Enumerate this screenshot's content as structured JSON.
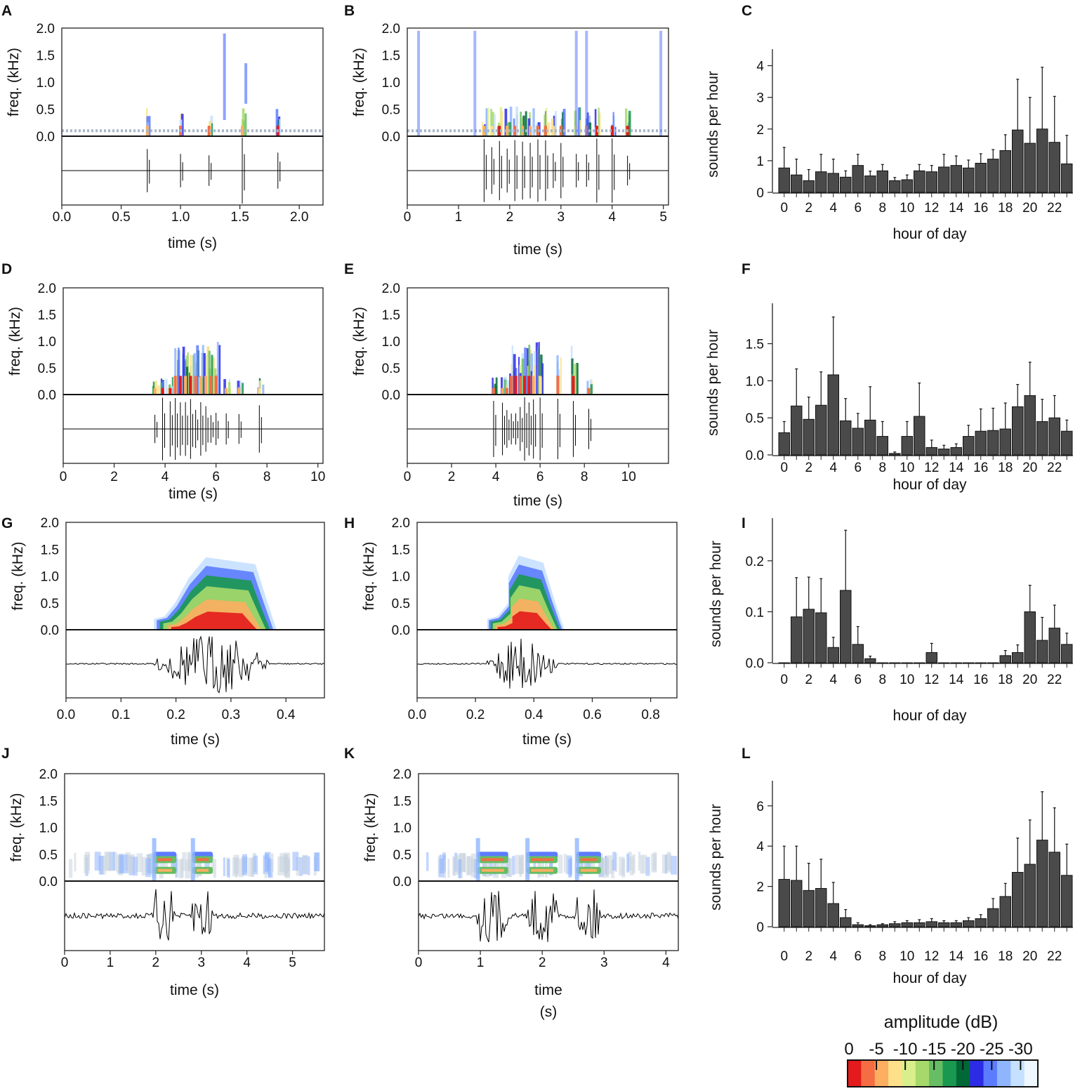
{
  "colors": {
    "bar": "#4a4a4a",
    "spectrogram_scale": [
      "#e41a1c",
      "#f46d43",
      "#fdae61",
      "#fee08b",
      "#d9ef8b",
      "#a6d96a",
      "#66bd63",
      "#1a9850",
      "#006837",
      "#2c2ce6",
      "#5c7cff",
      "#8fb5ff",
      "#c6e0ff",
      "#eef6ff"
    ]
  },
  "legend": {
    "title": "amplitude (dB)",
    "ticks": [
      "0",
      "-5",
      "-10",
      "-15",
      "-20",
      "-25",
      "-30"
    ]
  },
  "chart_data": [
    {
      "panel": "A",
      "type": "spectrogram",
      "ylabel": "freq. (kHz)",
      "xlabel": "time (s)",
      "yticks": [
        "0.0",
        "0.5",
        "1.0",
        "1.5",
        "2.0"
      ],
      "xticks": [
        "0.0",
        "0.5",
        "1.0",
        "1.5",
        "2.0"
      ],
      "xlim": [
        0,
        2.2
      ],
      "events": [
        0.72,
        1.0,
        1.24,
        1.52,
        1.82
      ]
    },
    {
      "panel": "B",
      "type": "spectrogram",
      "ylabel": "freq. (kHz)",
      "xlabel": "time (s)",
      "yticks": [
        "0.0",
        "0.5",
        "1.0",
        "1.5",
        "2.0"
      ],
      "xticks": [
        "0",
        "1",
        "2",
        "3",
        "4",
        "5"
      ],
      "xlim": [
        0,
        5.1
      ],
      "events": [
        1.5,
        1.65,
        1.8,
        1.95,
        2.1,
        2.25,
        2.4,
        2.55,
        2.7,
        2.85,
        3.0,
        3.3,
        3.5,
        3.7,
        4.0,
        4.3
      ]
    },
    {
      "panel": "C",
      "type": "bar",
      "xlabel": "hour of day",
      "ylabel": "sounds per hour",
      "xticks": [
        "0",
        "2",
        "4",
        "6",
        "8",
        "10",
        "12",
        "14",
        "16",
        "18",
        "20",
        "22"
      ],
      "yticks": [
        "0",
        "1",
        "2",
        "3",
        "4"
      ],
      "ylim": [
        0,
        4.3
      ],
      "categories": [
        0,
        1,
        2,
        3,
        4,
        5,
        6,
        7,
        8,
        9,
        10,
        11,
        12,
        13,
        14,
        15,
        16,
        17,
        18,
        19,
        20,
        21,
        22,
        23
      ],
      "values": [
        0.77,
        0.55,
        0.37,
        0.65,
        0.6,
        0.48,
        0.85,
        0.52,
        0.68,
        0.37,
        0.4,
        0.68,
        0.65,
        0.8,
        0.85,
        0.77,
        0.92,
        1.05,
        1.32,
        1.97,
        1.55,
        2.0,
        1.58,
        0.9
      ],
      "errors": [
        0.65,
        0.5,
        0.35,
        0.55,
        0.45,
        0.2,
        0.35,
        0.15,
        0.2,
        0.1,
        0.15,
        0.2,
        0.2,
        0.4,
        0.3,
        0.25,
        0.3,
        0.3,
        0.5,
        1.6,
        1.45,
        1.95,
        1.45,
        0.9
      ]
    },
    {
      "panel": "D",
      "type": "spectrogram",
      "ylabel": "freq. (kHz)",
      "xlabel": "time (s)",
      "yticks": [
        "0.0",
        "0.5",
        "1.0",
        "1.5",
        "2.0"
      ],
      "xticks": [
        "0",
        "2",
        "4",
        "6",
        "8",
        "10"
      ],
      "xlim": [
        0,
        10.2
      ],
      "events": [
        3.6,
        3.9,
        4.2,
        4.4,
        4.6,
        4.8,
        5.0,
        5.2,
        5.4,
        5.6,
        5.8,
        6.0,
        6.4,
        6.9,
        7.7
      ]
    },
    {
      "panel": "E",
      "type": "spectrogram",
      "ylabel": "freq. (kHz)",
      "xlabel": "time (s)",
      "yticks": [
        "0.0",
        "0.5",
        "1.0",
        "1.5",
        "2.0"
      ],
      "xticks": [
        "0",
        "2",
        "4",
        "6",
        "8",
        "10"
      ],
      "xlim": [
        0,
        11.8
      ],
      "events": [
        3.9,
        4.3,
        4.5,
        4.7,
        4.9,
        5.1,
        5.3,
        5.5,
        5.7,
        6.0,
        6.8,
        7.5,
        8.2
      ]
    },
    {
      "panel": "F",
      "type": "bar",
      "xlabel": "hour of day",
      "ylabel": "sounds per hour",
      "xticks": [
        "0",
        "2",
        "4",
        "6",
        "8",
        "10",
        "12",
        "14",
        "16",
        "18",
        "20",
        "22"
      ],
      "yticks": [
        "0.0",
        "0.5",
        "1.0",
        "1.5"
      ],
      "ylim": [
        0,
        1.95
      ],
      "categories": [
        0,
        1,
        2,
        3,
        4,
        5,
        6,
        7,
        8,
        9,
        10,
        11,
        12,
        13,
        14,
        15,
        16,
        17,
        18,
        19,
        20,
        21,
        22,
        23
      ],
      "values": [
        0.3,
        0.66,
        0.48,
        0.67,
        1.08,
        0.46,
        0.36,
        0.47,
        0.25,
        0.02,
        0.25,
        0.52,
        0.1,
        0.08,
        0.1,
        0.25,
        0.32,
        0.33,
        0.35,
        0.65,
        0.8,
        0.45,
        0.5,
        0.32
      ],
      "errors": [
        0.15,
        0.5,
        0.3,
        0.45,
        0.78,
        0.3,
        0.2,
        0.45,
        0.2,
        0.02,
        0.2,
        0.45,
        0.1,
        0.05,
        0.05,
        0.15,
        0.3,
        0.3,
        0.35,
        0.3,
        0.45,
        0.3,
        0.3,
        0.15
      ]
    },
    {
      "panel": "G",
      "type": "spectrogram",
      "ylabel": "freq. (kHz)",
      "xlabel": "time (s)",
      "yticks": [
        "0.0",
        "0.5",
        "1.0",
        "1.5",
        "2.0"
      ],
      "xticks": [
        "0.0",
        "0.1",
        "0.2",
        "0.3",
        "0.4"
      ],
      "xlim": [
        0,
        0.47
      ],
      "blob": [
        0.16,
        0.37
      ],
      "blob_top_khz": 1.35
    },
    {
      "panel": "H",
      "type": "spectrogram",
      "ylabel": "freq. (kHz)",
      "xlabel": "time (s)",
      "yticks": [
        "0.0",
        "0.5",
        "1.0",
        "1.5",
        "2.0"
      ],
      "xticks": [
        "0.0",
        "0.2",
        "0.4",
        "0.6",
        "0.8"
      ],
      "xlim": [
        0,
        0.89
      ],
      "blob": [
        0.24,
        0.48
      ],
      "blob_top_khz": 1.38
    },
    {
      "panel": "I",
      "type": "bar",
      "xlabel": "hour of day",
      "ylabel": "sounds per hour",
      "xticks": [
        "0",
        "2",
        "4",
        "6",
        "8",
        "10",
        "12",
        "14",
        "16",
        "18",
        "20",
        "22"
      ],
      "yticks": [
        "0.0",
        "0.1",
        "0.2"
      ],
      "ylim": [
        0,
        0.27
      ],
      "categories": [
        0,
        1,
        2,
        3,
        4,
        5,
        6,
        7,
        8,
        9,
        10,
        11,
        12,
        13,
        14,
        15,
        16,
        17,
        18,
        19,
        20,
        21,
        22,
        23
      ],
      "values": [
        0.0,
        0.09,
        0.105,
        0.098,
        0.03,
        0.142,
        0.036,
        0.008,
        0,
        0,
        0,
        0,
        0.02,
        0,
        0,
        0,
        0,
        0,
        0.014,
        0.02,
        0.1,
        0.044,
        0.068,
        0.036
      ],
      "errors": [
        0.0,
        0.077,
        0.063,
        0.067,
        0.02,
        0.118,
        0.035,
        0.005,
        0,
        0,
        0,
        0,
        0.018,
        0,
        0,
        0,
        0,
        0,
        0.01,
        0.015,
        0.052,
        0.045,
        0.045,
        0.022
      ]
    },
    {
      "panel": "J",
      "type": "spectrogram",
      "ylabel": "freq. (kHz)",
      "xlabel": "time (s)",
      "yticks": [
        "0.0",
        "0.5",
        "1.0",
        "1.5",
        "2.0"
      ],
      "xticks": [
        "0",
        "1",
        "2",
        "3",
        "4",
        "5"
      ],
      "xlim": [
        0,
        5.7
      ],
      "syllables": [
        [
          1.95,
          2.45
        ],
        [
          2.8,
          3.25
        ]
      ],
      "noise_band": true
    },
    {
      "panel": "K",
      "type": "spectrogram",
      "ylabel": "freq. (kHz)",
      "xlabel": "time",
      "xlabel2": "(s)",
      "yticks": [
        "0.0",
        "0.5",
        "1.0",
        "1.5",
        "2.0"
      ],
      "xticks": [
        "0",
        "1",
        "2",
        "3",
        "4"
      ],
      "xlim": [
        0,
        4.2
      ],
      "syllables": [
        [
          0.95,
          1.45
        ],
        [
          1.75,
          2.25
        ],
        [
          2.55,
          2.95
        ]
      ],
      "noise_band": true
    },
    {
      "panel": "L",
      "type": "bar",
      "xlabel": "hour of day",
      "ylabel": "sounds per hour",
      "xticks": [
        "0",
        "2",
        "4",
        "6",
        "8",
        "10",
        "12",
        "14",
        "16",
        "18",
        "20",
        "22"
      ],
      "yticks": [
        "0",
        "2",
        "4",
        "6"
      ],
      "ylim": [
        0,
        6.9
      ],
      "categories": [
        0,
        1,
        2,
        3,
        4,
        5,
        6,
        7,
        8,
        9,
        10,
        11,
        12,
        13,
        14,
        15,
        16,
        17,
        18,
        19,
        20,
        21,
        22,
        23
      ],
      "values": [
        2.35,
        2.3,
        1.8,
        1.9,
        1.15,
        0.45,
        0.1,
        0.05,
        0.1,
        0.15,
        0.2,
        0.2,
        0.25,
        0.2,
        0.2,
        0.3,
        0.4,
        0.9,
        1.5,
        2.7,
        3.1,
        4.3,
        3.7,
        2.55
      ],
      "errors": [
        1.65,
        1.7,
        1.35,
        1.45,
        1.05,
        0.4,
        0.1,
        0.05,
        0.05,
        0.1,
        0.1,
        0.15,
        0.15,
        0.1,
        0.1,
        0.15,
        0.2,
        0.5,
        0.65,
        1.7,
        2.2,
        2.4,
        2.2,
        1.55
      ]
    }
  ]
}
